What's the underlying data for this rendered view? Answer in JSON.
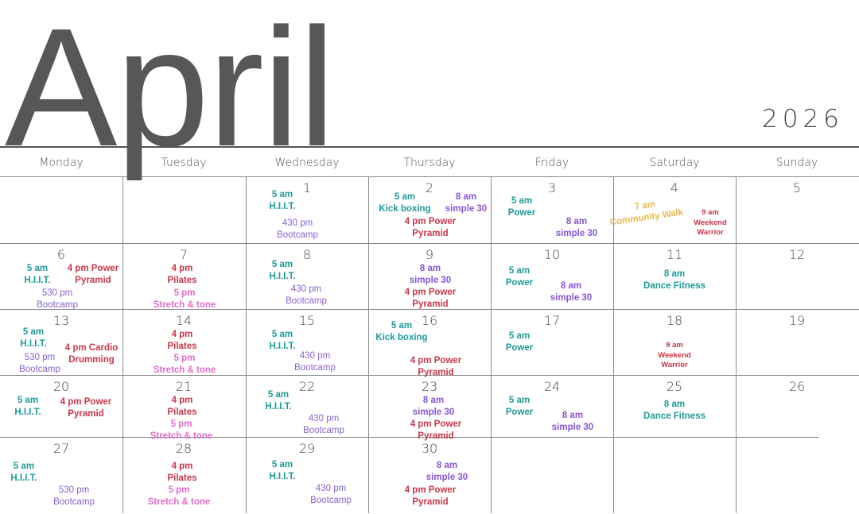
{
  "header": {
    "month": "April",
    "year": "2026"
  },
  "weekdays": [
    "Monday",
    "Tuesday",
    "Wednesday",
    "Thursday",
    "Friday",
    "Saturday",
    "Sunday"
  ],
  "colors": {
    "teal": "#1f9a9a",
    "purple": "#8755d6",
    "bootcamp": "#8a63cc",
    "red": "#c8374a",
    "pink": "#e36cc8",
    "gold": "#e9b84c"
  },
  "days": [
    {
      "date": "1",
      "events": [
        {
          "time": "5 am",
          "name": "H.I.I.T.",
          "color": "teal"
        },
        {
          "time": "430 pm",
          "name": "Bootcamp",
          "color": "bootcamp"
        }
      ]
    },
    {
      "date": "2",
      "events": [
        {
          "time": "5 am",
          "name": "Kick boxing",
          "color": "teal"
        },
        {
          "time": "8 am",
          "name": "simple 30",
          "color": "purple"
        },
        {
          "time": "4 pm Power",
          "name": "Pyramid",
          "color": "red"
        }
      ]
    },
    {
      "date": "3",
      "events": [
        {
          "time": "5 am",
          "name": "Power",
          "color": "teal"
        },
        {
          "time": "8 am",
          "name": "simple 30",
          "color": "purple"
        }
      ]
    },
    {
      "date": "4",
      "events": [
        {
          "time": "7 am",
          "name": "Community Walk",
          "color": "gold"
        },
        {
          "time": "9 am",
          "name": "Weekend Warrior",
          "color": "red"
        }
      ]
    },
    {
      "date": "5",
      "events": []
    },
    {
      "date": "6",
      "events": [
        {
          "time": "5 am",
          "name": "H.I.I.T.",
          "color": "teal"
        },
        {
          "time": "4 pm Power",
          "name": "Pyramid",
          "color": "red"
        },
        {
          "time": "530 pm",
          "name": "Bootcamp",
          "color": "bootcamp"
        }
      ]
    },
    {
      "date": "7",
      "events": [
        {
          "time": "4 pm",
          "name": "Pilates",
          "color": "red"
        },
        {
          "time": "5 pm",
          "name": "Stretch & tone",
          "color": "pink"
        }
      ]
    },
    {
      "date": "8",
      "events": [
        {
          "time": "5 am",
          "name": "H.I.I.T.",
          "color": "teal"
        },
        {
          "time": "430 pm",
          "name": "Bootcamp",
          "color": "bootcamp"
        }
      ]
    },
    {
      "date": "9",
      "events": [
        {
          "time": "8 am",
          "name": "simple 30",
          "color": "purple"
        },
        {
          "time": "4 pm Power",
          "name": "Pyramid",
          "color": "red"
        }
      ]
    },
    {
      "date": "10",
      "events": [
        {
          "time": "5 am",
          "name": "Power",
          "color": "teal"
        },
        {
          "time": "8 am",
          "name": "simple 30",
          "color": "purple"
        }
      ]
    },
    {
      "date": "11",
      "events": [
        {
          "time": "8 am",
          "name": "Dance Fitness",
          "color": "teal"
        }
      ]
    },
    {
      "date": "12",
      "events": []
    },
    {
      "date": "13",
      "events": [
        {
          "time": "5 am",
          "name": "H.I.I.T.",
          "color": "teal"
        },
        {
          "time": "4 pm Cardio",
          "name": "Drumming",
          "color": "red"
        },
        {
          "time": "530 pm",
          "name": "Bootcamp",
          "color": "bootcamp"
        }
      ]
    },
    {
      "date": "14",
      "events": [
        {
          "time": "4 pm",
          "name": "Pilates",
          "color": "red"
        },
        {
          "time": "5 pm",
          "name": "Stretch & tone",
          "color": "pink"
        }
      ]
    },
    {
      "date": "15",
      "events": [
        {
          "time": "5 am",
          "name": "H.I.I.T.",
          "color": "teal"
        },
        {
          "time": "430 pm",
          "name": "Bootcamp",
          "color": "bootcamp"
        }
      ]
    },
    {
      "date": "16",
      "events": [
        {
          "time": "5 am",
          "name": "Kick boxing",
          "color": "teal"
        },
        {
          "time": "4 pm Power",
          "name": "Pyramid",
          "color": "red"
        }
      ]
    },
    {
      "date": "17",
      "events": [
        {
          "time": "5 am",
          "name": "Power",
          "color": "teal"
        }
      ]
    },
    {
      "date": "18",
      "events": [
        {
          "time": "9 am",
          "name": "Weekend Warrior",
          "color": "red"
        }
      ]
    },
    {
      "date": "19",
      "events": []
    },
    {
      "date": "20",
      "events": [
        {
          "time": "5 am",
          "name": "H.I.I.T.",
          "color": "teal"
        },
        {
          "time": "4 pm Power",
          "name": "Pyramid",
          "color": "red"
        }
      ]
    },
    {
      "date": "21",
      "events": [
        {
          "time": "4 pm",
          "name": "Pilates",
          "color": "red"
        },
        {
          "time": "5 pm",
          "name": "Stretch & tone",
          "color": "pink"
        }
      ]
    },
    {
      "date": "22",
      "events": [
        {
          "time": "5 am",
          "name": "H.I.I.T.",
          "color": "teal"
        },
        {
          "time": "430 pm",
          "name": "Bootcamp",
          "color": "bootcamp"
        }
      ]
    },
    {
      "date": "23",
      "events": [
        {
          "time": "8 am",
          "name": "simple 30",
          "color": "purple"
        },
        {
          "time": "4 pm Power",
          "name": "Pyramid",
          "color": "red"
        }
      ]
    },
    {
      "date": "24",
      "events": [
        {
          "time": "5 am",
          "name": "Power",
          "color": "teal"
        },
        {
          "time": "8 am",
          "name": "simple 30",
          "color": "purple"
        }
      ]
    },
    {
      "date": "25",
      "events": [
        {
          "time": "8 am",
          "name": "Dance Fitness",
          "color": "teal"
        }
      ]
    },
    {
      "date": "26",
      "events": []
    },
    {
      "date": "27",
      "events": [
        {
          "time": "5 am",
          "name": "H.I.I.T.",
          "color": "teal"
        },
        {
          "time": "530 pm",
          "name": "Bootcamp",
          "color": "bootcamp"
        }
      ]
    },
    {
      "date": "28",
      "events": [
        {
          "time": "4 pm",
          "name": "Pilates",
          "color": "red"
        },
        {
          "time": "5 pm",
          "name": "Stretch & tone",
          "color": "pink"
        }
      ]
    },
    {
      "date": "29",
      "events": [
        {
          "time": "5 am",
          "name": "H.I.I.T.",
          "color": "teal"
        },
        {
          "time": "430 pm",
          "name": "Bootcamp",
          "color": "bootcamp"
        }
      ]
    },
    {
      "date": "30",
      "events": [
        {
          "time": "8 am",
          "name": "simple 30",
          "color": "purple"
        },
        {
          "time": "4 pm Power",
          "name": "Pyramid",
          "color": "red"
        }
      ]
    }
  ]
}
